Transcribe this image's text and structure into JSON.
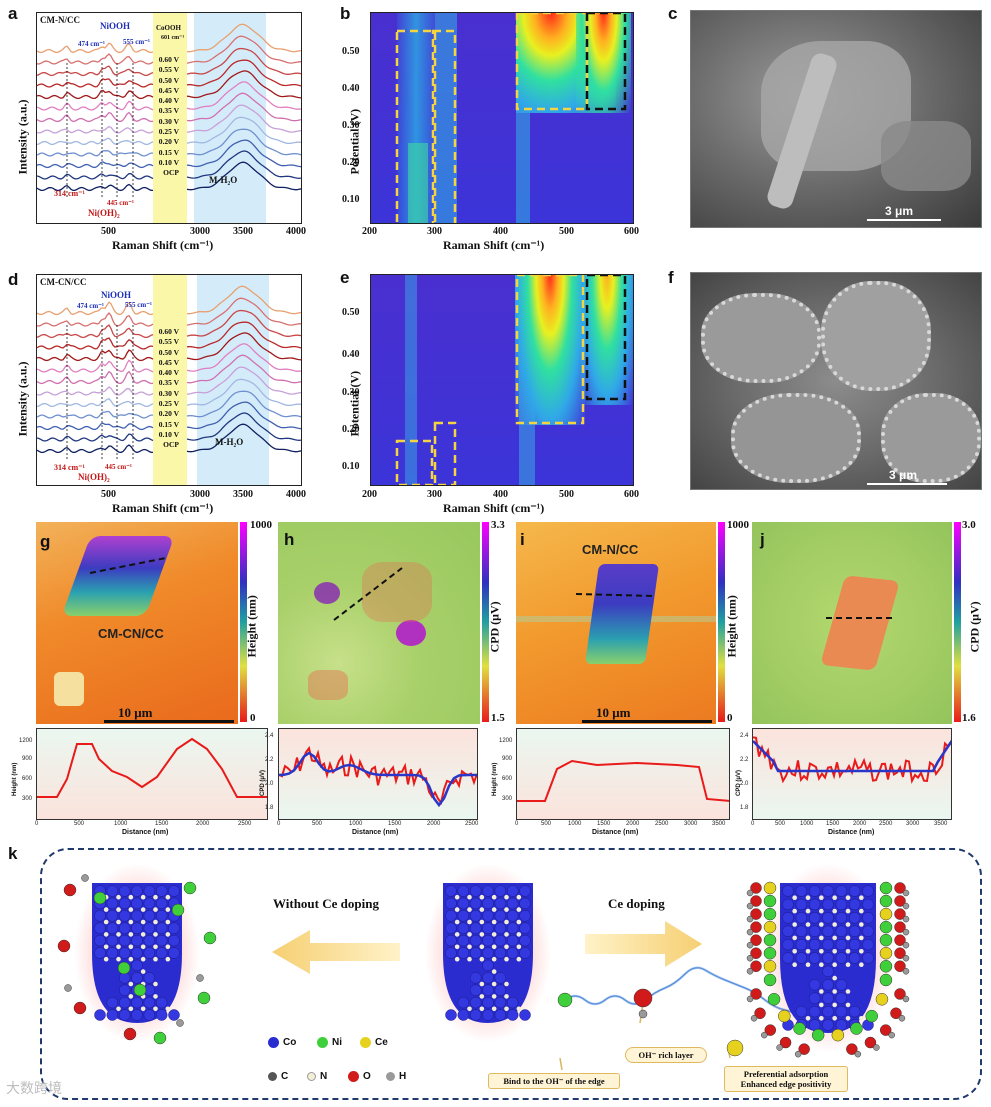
{
  "panels": {
    "a": {
      "letter": "a",
      "sample": "CM-N/CC",
      "xlabel": "Raman Shift (cm⁻¹)",
      "ylabel": "Intensity (a.u.)",
      "xticks": [
        "500",
        "3000",
        "3500",
        "4000"
      ],
      "potentials": [
        "0.60 V",
        "0.55 V",
        "0.50 V",
        "0.45 V",
        "0.40 V",
        "0.35 V",
        "0.30 V",
        "0.25 V",
        "0.20 V",
        "0.15 V",
        "0.10 V",
        "OCP"
      ],
      "annotations": {
        "niooh": "NiOOH",
        "p474": "474 cm⁻¹",
        "p555": "555 cm⁻¹",
        "cooh": "CoOOH",
        "p601": "601 cm⁻¹",
        "p314": "314 cm⁻¹",
        "p445": "445 cm⁻¹",
        "nioh2": "Ni(OH)₂",
        "mh2o": "M-H₂O"
      }
    },
    "b": {
      "letter": "b",
      "xlabel": "Raman Shift (cm⁻¹)",
      "ylabel": "Potential (V)",
      "xticks": [
        "200",
        "300",
        "400",
        "500",
        "600"
      ],
      "yticks": [
        "0.10",
        "0.20",
        "0.30",
        "0.40",
        "0.50"
      ]
    },
    "c": {
      "letter": "c",
      "scale": "3 μm"
    },
    "d": {
      "letter": "d",
      "sample": "CM-CN/CC",
      "xlabel": "Raman Shift (cm⁻¹)",
      "ylabel": "Intensity (a.u.)",
      "xticks": [
        "500",
        "3000",
        "3500",
        "4000"
      ],
      "potentials": [
        "0.60 V",
        "0.55 V",
        "0.50 V",
        "0.45 V",
        "0.40 V",
        "0.35 V",
        "0.30 V",
        "0.25 V",
        "0.20 V",
        "0.15 V",
        "0.10 V",
        "OCP"
      ],
      "annotations": {
        "niooh": "NiOOH",
        "p474": "474 cm⁻¹",
        "p555": "555 cm⁻¹",
        "p314": "314 cm⁻¹",
        "p445": "445 cm⁻¹",
        "nioh2": "Ni(OH)₂",
        "mh2o": "M-H₂O"
      }
    },
    "e": {
      "letter": "e",
      "xlabel": "Raman Shift (cm⁻¹)",
      "ylabel": "Potential (V)",
      "xticks": [
        "200",
        "300",
        "400",
        "500",
        "600"
      ],
      "yticks": [
        "0.10",
        "0.20",
        "0.30",
        "0.40",
        "0.50"
      ]
    },
    "f": {
      "letter": "f",
      "scale": "3 μm"
    },
    "g": {
      "letter": "g",
      "sample": "CM-CN/CC",
      "scale": "10 μm",
      "cbar_label": "Height (nm)",
      "cbar_max": "1000",
      "cbar_min": "0",
      "profile": {
        "ylabel": "Height (nm)",
        "xlabel": "Distance (nm)",
        "yticks": [
          "1200",
          "900",
          "600",
          "300"
        ],
        "xticks": [
          "0",
          "500",
          "1000",
          "1500",
          "2000",
          "2500"
        ]
      }
    },
    "h": {
      "letter": "h",
      "cbar_label": "CPD (μV)",
      "cbar_max": "3.3",
      "cbar_min": "1.5",
      "profile": {
        "ylabel": "CPD (μV)",
        "xlabel": "Distance (nm)",
        "yticks": [
          "2.4",
          "2.2",
          "2.0",
          "1.8"
        ],
        "xticks": [
          "0",
          "500",
          "1000",
          "1500",
          "2000",
          "2500"
        ]
      }
    },
    "i": {
      "letter": "i",
      "sample": "CM-N/CC",
      "scale": "10 μm",
      "cbar_label": "Height (nm)",
      "cbar_max": "1000",
      "cbar_min": "0",
      "profile": {
        "ylabel": "Height (nm)",
        "xlabel": "Distance (nm)",
        "yticks": [
          "1200",
          "900",
          "600",
          "300"
        ],
        "xticks": [
          "0",
          "500",
          "1000",
          "1500",
          "2000",
          "2500",
          "3000",
          "3500"
        ]
      }
    },
    "j": {
      "letter": "j",
      "cbar_label": "CPD (μV)",
      "cbar_max": "3.0",
      "cbar_min": "1.6",
      "profile": {
        "ylabel": "CPD (μV)",
        "xlabel": "Distance (nm)",
        "yticks": [
          "2.4",
          "2.2",
          "2.0",
          "1.8"
        ],
        "xticks": [
          "0",
          "500",
          "1000",
          "1500",
          "2000",
          "2500",
          "3000",
          "3500"
        ]
      }
    },
    "k": {
      "letter": "k",
      "without": "Without Ce doping",
      "with": "Ce doping",
      "legend": [
        {
          "label": "Co",
          "color": "#2a2ccf"
        },
        {
          "label": "Ni",
          "color": "#3fcf3a"
        },
        {
          "label": "Ce",
          "color": "#e6d21e"
        },
        {
          "label": "C",
          "color": "#555555"
        },
        {
          "label": "N",
          "color": "#f2efd6"
        },
        {
          "label": "O",
          "color": "#d11a1a"
        },
        {
          "label": "H",
          "color": "#9a9a9a"
        }
      ],
      "note_bind": "Bind to the OH⁻ of the edge",
      "note_rich": "OH⁻ rich layer",
      "note_pref": "Preferential adsorption\nEnhanced edge positivity"
    }
  },
  "watermark": "大数跨境"
}
